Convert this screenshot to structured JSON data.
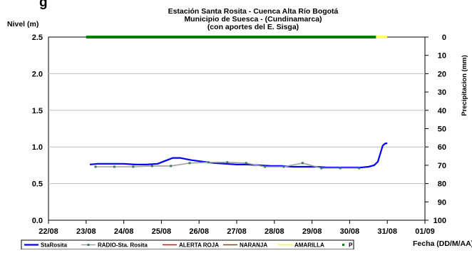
{
  "header_fragment": "g",
  "chart_data": {
    "type": "line",
    "title_lines": [
      "Estación Santa Rosita - Cuenca Alta Río Bogotá",
      "Municipio de Suesca - (Cundinamarca)",
      "(con aportes del  E. Sisga)"
    ],
    "ylabel": "Nivel (m)",
    "y2label": "Precipitacion (mm)",
    "xlabel": "Fecha (DD/M/AA)",
    "x_ticks": [
      "22/08",
      "23/08",
      "24/08",
      "25/08",
      "26/08",
      "27/08",
      "28/08",
      "29/08",
      "30/08",
      "31/08",
      "01/09"
    ],
    "y_ticks": [
      "0.0",
      "0.5",
      "1.0",
      "1.5",
      "2.0",
      "2.5"
    ],
    "y2_ticks": [
      "0",
      "10",
      "20",
      "30",
      "40",
      "50",
      "60",
      "70",
      "80",
      "90",
      "100"
    ],
    "xlim": [
      22,
      32
    ],
    "ylim": [
      0,
      2.5
    ],
    "y2lim": [
      0,
      100
    ],
    "y2_inverted": true,
    "grid": "horizontal",
    "legend_position": "bottom",
    "series": [
      {
        "name": "StaRosita",
        "color": "#0000ff",
        "style": "solid-thick",
        "points": [
          [
            23.1,
            0.76
          ],
          [
            23.3,
            0.77
          ],
          [
            23.6,
            0.77
          ],
          [
            24.0,
            0.77
          ],
          [
            24.3,
            0.76
          ],
          [
            24.6,
            0.76
          ],
          [
            24.9,
            0.77
          ],
          [
            25.1,
            0.81
          ],
          [
            25.3,
            0.85
          ],
          [
            25.5,
            0.85
          ],
          [
            25.8,
            0.82
          ],
          [
            26.1,
            0.8
          ],
          [
            26.4,
            0.78
          ],
          [
            26.7,
            0.77
          ],
          [
            27.0,
            0.76
          ],
          [
            27.3,
            0.76
          ],
          [
            27.6,
            0.75
          ],
          [
            27.9,
            0.74
          ],
          [
            28.2,
            0.74
          ],
          [
            28.5,
            0.73
          ],
          [
            28.8,
            0.73
          ],
          [
            29.1,
            0.73
          ],
          [
            29.4,
            0.72
          ],
          [
            29.7,
            0.72
          ],
          [
            30.0,
            0.72
          ],
          [
            30.3,
            0.72
          ],
          [
            30.5,
            0.73
          ],
          [
            30.65,
            0.75
          ],
          [
            30.75,
            0.8
          ],
          [
            30.82,
            0.92
          ],
          [
            30.88,
            1.02
          ],
          [
            30.95,
            1.05
          ],
          [
            31.0,
            1.05
          ]
        ]
      },
      {
        "name": "RADIO-Sta. Rosita",
        "color": "#a0a0a0",
        "marker_color": "#3a7a6a",
        "style": "solid-markers",
        "points": [
          [
            23.25,
            0.73
          ],
          [
            23.75,
            0.73
          ],
          [
            24.25,
            0.73
          ],
          [
            24.75,
            0.74
          ],
          [
            25.25,
            0.74
          ],
          [
            25.75,
            0.78
          ],
          [
            26.25,
            0.79
          ],
          [
            26.75,
            0.79
          ],
          [
            27.25,
            0.78
          ],
          [
            27.75,
            0.73
          ],
          [
            28.25,
            0.73
          ],
          [
            28.75,
            0.78
          ],
          [
            29.25,
            0.71
          ],
          [
            29.75,
            0.71
          ],
          [
            30.25,
            0.71
          ]
        ]
      },
      {
        "name": "ALERTA ROJA",
        "color": "#ff0000",
        "style": "solid",
        "points": []
      },
      {
        "name": "NARANJA",
        "color": "#8b4513",
        "style": "solid",
        "points": []
      },
      {
        "name": "AMARILLA",
        "color": "#ffff00",
        "style": "solid",
        "points": []
      },
      {
        "name": "P",
        "color": "#008000",
        "style": "dotted-secondary",
        "x_range": [
          23.0,
          30.7
        ],
        "value_mm": 0
      }
    ],
    "precip_end_segment": {
      "color": "#ffff66",
      "x_range": [
        30.7,
        31.0
      ],
      "value_mm": 0
    }
  }
}
